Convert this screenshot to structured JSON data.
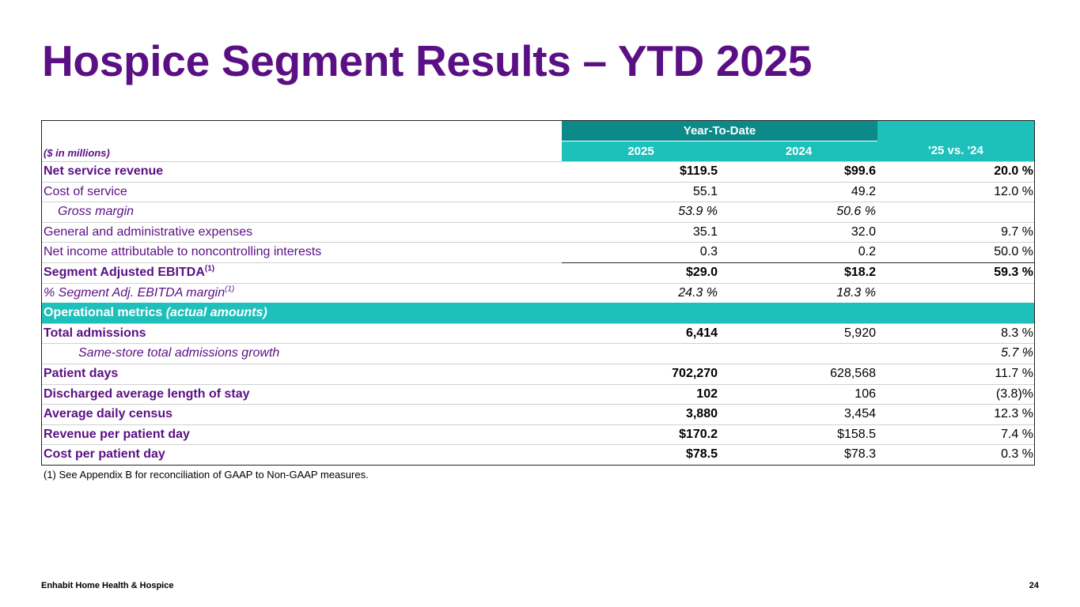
{
  "title": "Hospice Segment Results – YTD 2025",
  "header": {
    "units_label": "($ in millions)",
    "ytd_label": "Year-To-Date",
    "col_2025": "2025",
    "col_2024": "2024",
    "col_change": "'25 vs. '24"
  },
  "rows": [
    {
      "label": "Net service revenue",
      "v2025": "$119.5",
      "v2024": "$99.6",
      "change": "20.0 %"
    },
    {
      "label": "Cost of service",
      "v2025": "55.1",
      "v2024": "49.2",
      "change": "12.0 %"
    },
    {
      "label": "Gross margin",
      "v2025": "53.9 %",
      "v2024": "50.6 %",
      "change": ""
    },
    {
      "label": "General and administrative expenses",
      "v2025": "35.1",
      "v2024": "32.0",
      "change": "9.7 %"
    },
    {
      "label": "Net income attributable to noncontrolling interests",
      "v2025": "0.3",
      "v2024": "0.2",
      "change": "50.0 %"
    },
    {
      "label": "Segment Adjusted EBITDA",
      "sup": "(1)",
      "v2025": "$29.0",
      "v2024": "$18.2",
      "change": "59.3 %"
    },
    {
      "label": "% Segment Adj. EBITDA margin",
      "sup": "(1)",
      "v2025": "24.3 %",
      "v2024": "18.3 %",
      "change": ""
    },
    {
      "label": "Operational metrics ",
      "label_italic": "(actual amounts)"
    },
    {
      "label": "Total admissions",
      "v2025": "6,414",
      "v2024": "5,920",
      "change": "8.3 %"
    },
    {
      "label": "Same-store total admissions growth",
      "v2025": "",
      "v2024": "",
      "change": "5.7 %"
    },
    {
      "label": "Patient days",
      "v2025": "702,270",
      "v2024": "628,568",
      "change": "11.7 %"
    },
    {
      "label": "Discharged average length of stay",
      "v2025": "102",
      "v2024": "106",
      "change": "(3.8)%"
    },
    {
      "label": "Average daily census",
      "v2025": "3,880",
      "v2024": "3,454",
      "change": "12.3 %"
    },
    {
      "label": "Revenue per patient day",
      "v2025": "$170.2",
      "v2024": "$158.5",
      "change": "7.4 %"
    },
    {
      "label": "Cost per patient day",
      "v2025": "$78.5",
      "v2024": "$78.3",
      "change": "0.3 %"
    }
  ],
  "footnote": "(1) See Appendix B for reconciliation of GAAP to Non-GAAP measures.",
  "footer": {
    "company": "Enhabit Home Health & Hospice",
    "page_number": "24"
  },
  "colors": {
    "title_purple": "#5b0f84",
    "teal_dark": "#0c8a8a",
    "teal_light": "#1ec0bb"
  }
}
